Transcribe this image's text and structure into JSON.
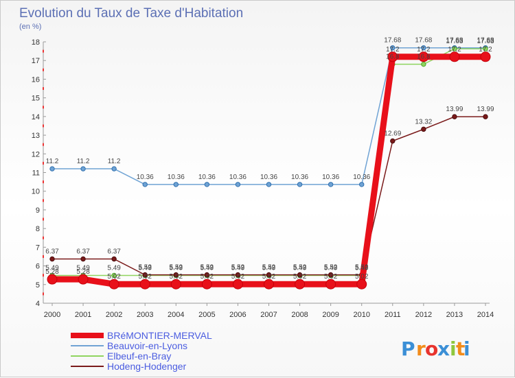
{
  "chart_data": {
    "type": "line",
    "title": "Evolution du Taux de Taxe d'Habitation",
    "subtitle": "(en %)",
    "x": [
      "2000",
      "2001",
      "2002",
      "2003",
      "2004",
      "2005",
      "2006",
      "2007",
      "2008",
      "2009",
      "2010",
      "2011",
      "2012",
      "2013",
      "2014"
    ],
    "ylim": [
      4,
      18
    ],
    "yticks": [
      4,
      5,
      6,
      7,
      8,
      9,
      10,
      11,
      12,
      13,
      14,
      15,
      16,
      17,
      18
    ],
    "grid": false,
    "legend_position": "bottom-left",
    "series": [
      {
        "name": "BRéMONTIER-MERVAL",
        "color": "#e8101a",
        "width": 9,
        "values": [
          5.28,
          5.28,
          5.02,
          5.02,
          5.02,
          5.02,
          5.02,
          5.02,
          5.02,
          5.02,
          5.02,
          17.2,
          17.2,
          17.2,
          17.2
        ],
        "labels": [
          "5.28",
          "5.28",
          "5.02",
          "5.02",
          "5.02",
          "5.02",
          "5.02",
          "5.02",
          "5.02",
          "5.02",
          "5.02",
          "17.2",
          "17.2",
          "17.2",
          "17.2"
        ]
      },
      {
        "name": "Beauvoir-en-Lyons",
        "color": "#6fa3d4",
        "width": 1.5,
        "values": [
          11.2,
          11.2,
          11.2,
          10.36,
          10.36,
          10.36,
          10.36,
          10.36,
          10.36,
          10.36,
          10.36,
          17.68,
          17.68,
          17.68,
          17.68
        ],
        "labels": [
          "11.2",
          "11.2",
          "11.2",
          "10.36",
          "10.36",
          "10.36",
          "10.36",
          "10.36",
          "10.36",
          "10.36",
          "10.36",
          "17.68",
          "17.68",
          "17.68",
          "17.68"
        ]
      },
      {
        "name": "Elbeuf-en-Bray",
        "color": "#8fd45f",
        "width": 1.5,
        "values": [
          5.49,
          5.49,
          5.49,
          5.49,
          5.49,
          5.49,
          5.49,
          5.49,
          5.49,
          5.49,
          5.49,
          16.8,
          16.8,
          17.63,
          17.63
        ],
        "labels": [
          "5.49",
          "5.49",
          "5.49",
          "5.49",
          "5.49",
          "5.49",
          "5.49",
          "5.49",
          "5.49",
          "5.49",
          "5.49",
          "16.8",
          "16.8",
          "17.63",
          "17.63"
        ]
      },
      {
        "name": "Hodeng-Hodenger",
        "color": "#7a1a1a",
        "width": 1.5,
        "values": [
          6.37,
          6.37,
          6.37,
          5.52,
          5.52,
          5.52,
          5.52,
          5.52,
          5.52,
          5.52,
          5.52,
          12.69,
          13.32,
          13.99,
          13.99
        ],
        "labels": [
          "6.37",
          "6.37",
          "6.37",
          "5.52",
          "5.52",
          "5.52",
          "5.52",
          "5.52",
          "5.52",
          "5.52",
          "5.52",
          "12.69",
          "13.32",
          "13.99",
          "13.99"
        ]
      }
    ]
  },
  "logo": {
    "chars": [
      "P",
      "r",
      "o",
      "x",
      "i",
      "t",
      "i"
    ],
    "colors": [
      "#3b8fd6",
      "#f28c1b",
      "#e8342e",
      "#3b8fd6",
      "#8fc73e",
      "#f28c1b",
      "#3b8fd6"
    ]
  }
}
